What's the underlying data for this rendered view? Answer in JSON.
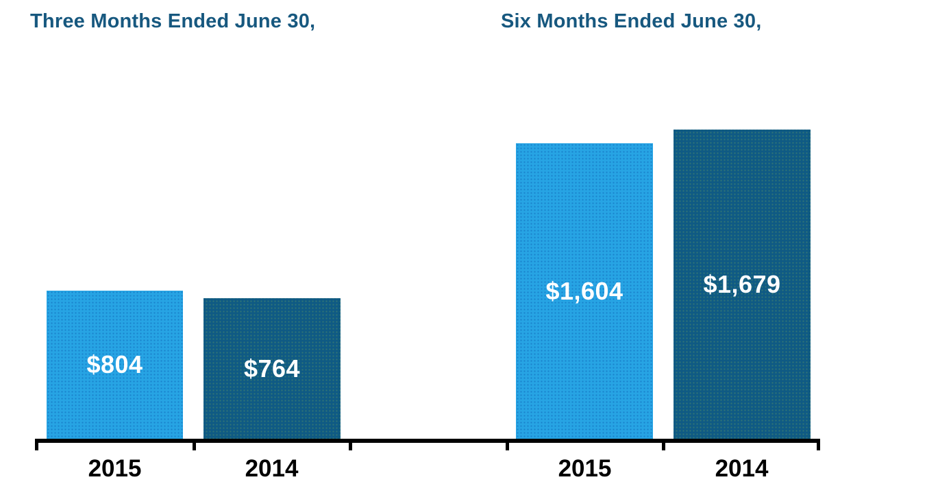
{
  "chart_data": {
    "type": "bar",
    "groups": [
      {
        "title": "Three Months Ended June 30,",
        "categories": [
          "2015",
          "2014"
        ],
        "values": [
          804,
          764
        ],
        "labels": [
          "$804",
          "$764"
        ]
      },
      {
        "title": "Six Months Ended June 30,",
        "categories": [
          "2015",
          "2014"
        ],
        "values": [
          1604,
          1679
        ],
        "labels": [
          "$1,604",
          "$1,679"
        ]
      }
    ],
    "ylim": [
      0,
      1700
    ],
    "grid": false,
    "legend": "none",
    "y_axis": "hidden",
    "value_label_position": "inside-center",
    "colors": {
      "series_2015": "#27A4E4",
      "series_2014": "#0F5A84",
      "title_text": "#17587F",
      "axis": "#000000",
      "value_label": "#FFFFFF",
      "category_label": "#000000"
    }
  }
}
